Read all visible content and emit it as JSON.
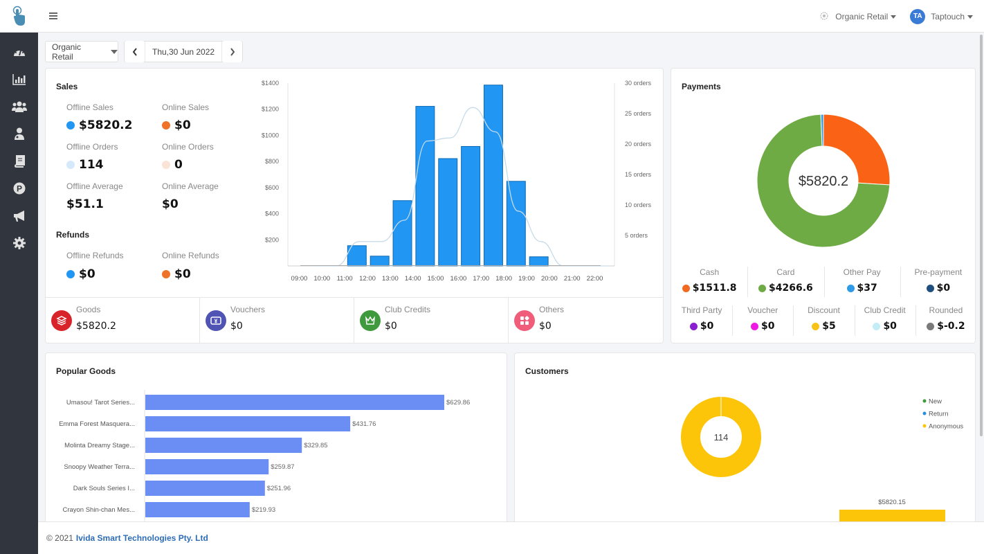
{
  "header": {
    "store_name": "Organic Retail",
    "user_initials": "TA",
    "user_name": "Taptouch"
  },
  "sidebar": {
    "items": [
      {
        "name": "dashboard",
        "icon": "speedometer-icon"
      },
      {
        "name": "reports",
        "icon": "bar-chart-icon"
      },
      {
        "name": "customers",
        "icon": "users-icon"
      },
      {
        "name": "staff",
        "icon": "staff-icon"
      },
      {
        "name": "catalog",
        "icon": "book-icon"
      },
      {
        "name": "points",
        "icon": "p-circle-icon"
      },
      {
        "name": "marketing",
        "icon": "megaphone-icon"
      },
      {
        "name": "settings",
        "icon": "gear-icon"
      }
    ]
  },
  "controls": {
    "store_select": "Organic Retail",
    "date": "Thu,30 Jun 2022"
  },
  "sales": {
    "title": "Sales",
    "offline_sales_label": "Offline Sales",
    "offline_sales": "$5820.2",
    "online_sales_label": "Online Sales",
    "online_sales": "$0",
    "offline_orders_label": "Offline Orders",
    "offline_orders": "114",
    "online_orders_label": "Online Orders",
    "online_orders": "0",
    "offline_average_label": "Offline Average",
    "offline_average": "$51.1",
    "online_average_label": "Online Average",
    "online_average": "$0",
    "refunds_title": "Refunds",
    "offline_refunds_label": "Offline Refunds",
    "offline_refunds": "$0",
    "online_refunds_label": "Online Refunds",
    "online_refunds": "$0",
    "colors": {
      "offline": "#2196f3",
      "online": "#ee7228",
      "offline_light": "#d6e9fb",
      "online_light": "#fbe3d6"
    }
  },
  "summary": [
    {
      "label": "Goods",
      "value": "$5820.2",
      "icon": "layers-icon",
      "color": "#d9232a"
    },
    {
      "label": "Vouchers",
      "value": "$0",
      "icon": "voucher-icon",
      "color": "#4f53b3"
    },
    {
      "label": "Club Credits",
      "value": "$0",
      "icon": "crown-icon",
      "color": "#3e9a3c"
    },
    {
      "label": "Others",
      "value": "$0",
      "icon": "apps-icon",
      "color": "#ef5d7a"
    }
  ],
  "payments": {
    "title": "Payments",
    "total": "$5820.2",
    "row1": [
      {
        "label": "Cash",
        "value": "$1511.8",
        "color": "#f06a22"
      },
      {
        "label": "Card",
        "value": "$4266.6",
        "color": "#6fab45"
      },
      {
        "label": "Other Pay",
        "value": "$37",
        "color": "#2e9ae8"
      },
      {
        "label": "Pre-payment",
        "value": "$0",
        "color": "#1e4f7f"
      }
    ],
    "row2": [
      {
        "label": "Third Party",
        "value": "$0",
        "color": "#8a1fd1"
      },
      {
        "label": "Voucher",
        "value": "$0",
        "color": "#ee1ae4"
      },
      {
        "label": "Discount",
        "value": "$5",
        "color": "#f7c31a"
      },
      {
        "label": "Club Credit",
        "value": "$0",
        "color": "#c4ecf7"
      },
      {
        "label": "Rounded",
        "value": "$-0.2",
        "color": "#7a7a7a"
      }
    ]
  },
  "popular_goods": {
    "title": "Popular Goods"
  },
  "customers": {
    "title": "Customers",
    "center_value": "114",
    "bar_label": "$5820.15"
  },
  "footer": {
    "copyright": "© 2021",
    "company": "Ivida Smart Technologies Pty. Ltd"
  },
  "chart_data": [
    {
      "type": "bar",
      "title": "Sales by hour",
      "categories": [
        "09:00",
        "10:00",
        "11:00",
        "12:00",
        "13:00",
        "14:00",
        "15:00",
        "16:00",
        "17:00",
        "18:00",
        "19:00",
        "20:00",
        "21:00",
        "22:00"
      ],
      "series": [
        {
          "name": "Sales",
          "axis": "left",
          "type": "bar",
          "color": "#2196f3",
          "values": [
            0,
            0,
            155,
            75,
            500,
            1222,
            822,
            915,
            1385,
            648,
            70,
            0,
            0,
            0
          ]
        },
        {
          "name": "Orders",
          "axis": "right",
          "type": "line",
          "color": "#c6dbe9",
          "values": [
            0,
            0,
            4,
            4,
            7.5,
            20.5,
            21,
            26,
            22,
            9,
            4,
            0,
            0,
            0
          ]
        }
      ],
      "yticks_left": [
        "$200",
        "$400",
        "$600",
        "$800",
        "$1000",
        "$1200",
        "$1400"
      ],
      "yticks_right": [
        "5 orders",
        "10 orders",
        "15 orders",
        "20 orders",
        "25 orders",
        "30 orders"
      ],
      "ylim": [
        0,
        1400
      ],
      "ylim_right": [
        0,
        30
      ]
    },
    {
      "type": "pie",
      "title": "Payments",
      "labels": [
        "Cash",
        "Card",
        "Other Pay"
      ],
      "values": [
        1511.8,
        4266.6,
        37
      ],
      "colors": [
        "#fa6315",
        "#6fab45",
        "#2e9ae8"
      ],
      "center_label": "$5820.2"
    },
    {
      "type": "bar",
      "orientation": "horizontal",
      "title": "Popular Goods",
      "categories": [
        "Umasou! Tarot Series...",
        "Emma Forest Masquera...",
        "Molinta Dreamy Stage...",
        "Snoopy Weather Terra...",
        "Dark Souls Series I...",
        "Crayon Shin-chan Mes..."
      ],
      "values": [
        629.86,
        431.76,
        329.85,
        259.87,
        251.96,
        219.93
      ],
      "value_labels": [
        "$629.86",
        "$431.76",
        "$329.85",
        "$259.87",
        "$251.96",
        "$219.93"
      ],
      "color": "#6b8ef5"
    },
    {
      "type": "pie",
      "title": "Customers",
      "labels": [
        "New",
        "Return",
        "Anonymous"
      ],
      "values": [
        0,
        0,
        114
      ],
      "colors": [
        "#3e9a3c",
        "#2e8fd9",
        "#fcc50a"
      ],
      "center_label": "114",
      "legend": "top-right"
    },
    {
      "type": "bar",
      "title": "Customer Sales",
      "categories": [
        "Anonymous"
      ],
      "values": [
        5820.15
      ],
      "value_labels": [
        "$5820.15"
      ],
      "color": "#fcc50a"
    }
  ]
}
